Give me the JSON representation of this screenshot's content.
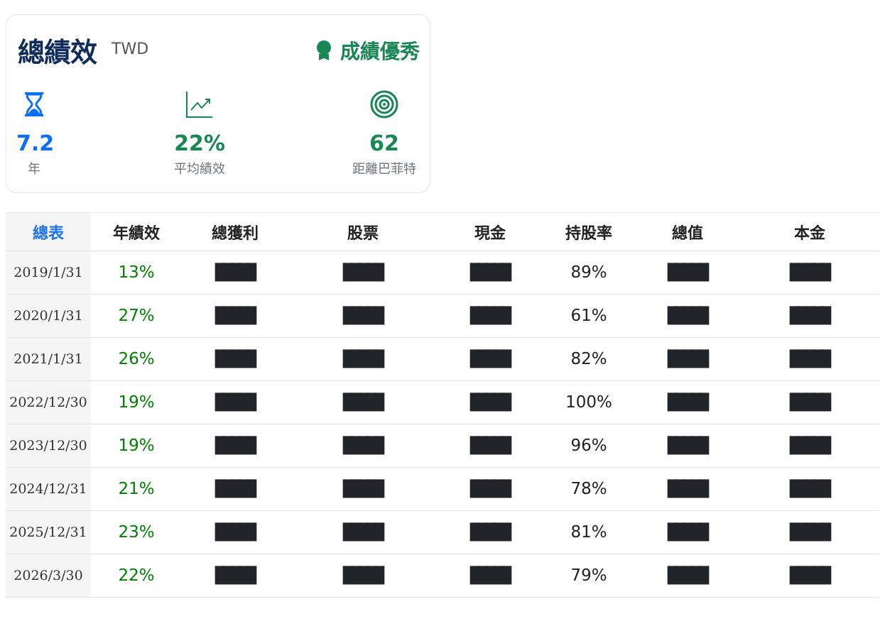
{
  "summary": {
    "title": "總績效",
    "currency": "TWD",
    "badge": "成績優秀",
    "colors": {
      "title": "#0f2c5c",
      "green": "#198754",
      "blue": "#0d6efd"
    },
    "stats": [
      {
        "icon": "hourglass-icon",
        "value": "7.2",
        "label": "年"
      },
      {
        "icon": "chart-line-icon",
        "value": "22%",
        "label": "平均績效"
      },
      {
        "icon": "target-icon",
        "value": "62",
        "label": "距離巴菲特"
      }
    ]
  },
  "table": {
    "headers": [
      "總表",
      "年績效",
      "總獲利",
      "股票",
      "現金",
      "持股率",
      "總值",
      "本金"
    ],
    "mask": "█████",
    "rows": [
      {
        "date": "2019/1/31",
        "perf": "13%",
        "ratio": "89%"
      },
      {
        "date": "2020/1/31",
        "perf": "27%",
        "ratio": "61%"
      },
      {
        "date": "2021/1/31",
        "perf": "26%",
        "ratio": "82%"
      },
      {
        "date": "2022/12/30",
        "perf": "19%",
        "ratio": "100%"
      },
      {
        "date": "2023/12/30",
        "perf": "19%",
        "ratio": "96%"
      },
      {
        "date": "2024/12/31",
        "perf": "21%",
        "ratio": "78%"
      },
      {
        "date": "2025/12/31",
        "perf": "23%",
        "ratio": "81%"
      },
      {
        "date": "2026/3/30",
        "perf": "22%",
        "ratio": "79%"
      }
    ]
  }
}
